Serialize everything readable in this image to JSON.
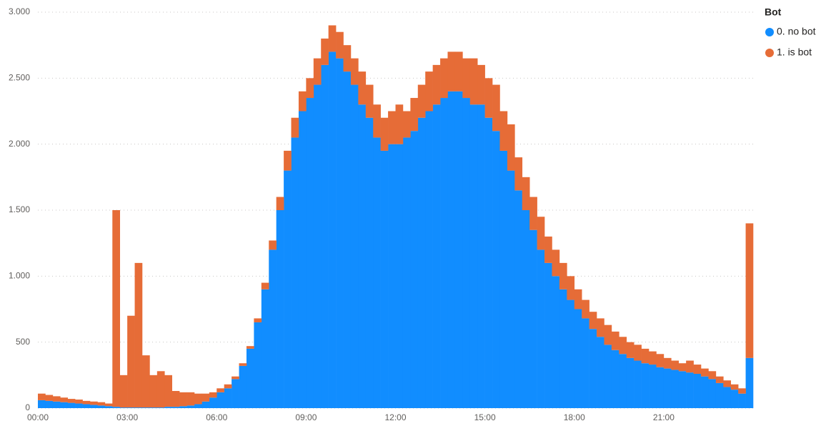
{
  "chart_data": {
    "type": "stacked-bar",
    "legend_title": "Bot",
    "x": [
      0,
      0.25,
      0.5,
      0.75,
      1,
      1.25,
      1.5,
      1.75,
      2,
      2.25,
      2.5,
      2.75,
      3,
      3.25,
      3.5,
      3.75,
      4,
      4.25,
      4.5,
      4.75,
      5,
      5.25,
      5.5,
      5.75,
      6,
      6.25,
      6.5,
      6.75,
      7,
      7.25,
      7.5,
      7.75,
      8,
      8.25,
      8.5,
      8.75,
      9,
      9.25,
      9.5,
      9.75,
      10,
      10.25,
      10.5,
      10.75,
      11,
      11.25,
      11.5,
      11.75,
      12,
      12.25,
      12.5,
      12.75,
      13,
      13.25,
      13.5,
      13.75,
      14,
      14.25,
      14.5,
      14.75,
      15,
      15.25,
      15.5,
      15.75,
      16,
      16.25,
      16.5,
      16.75,
      17,
      17.25,
      17.5,
      17.75,
      18,
      18.25,
      18.5,
      18.75,
      19,
      19.25,
      19.5,
      19.75,
      20,
      20.25,
      20.5,
      20.75,
      21,
      21.25,
      21.5,
      21.75,
      22,
      22.25,
      22.5,
      22.75,
      23,
      23.25,
      23.5,
      23.75
    ],
    "series": [
      {
        "name": "0. no bot",
        "color": "#118DFF",
        "values": [
          60,
          55,
          50,
          45,
          40,
          35,
          30,
          25,
          20,
          15,
          10,
          5,
          5,
          5,
          5,
          5,
          5,
          10,
          10,
          15,
          20,
          30,
          50,
          80,
          120,
          150,
          220,
          320,
          450,
          650,
          900,
          1200,
          1500,
          1800,
          2050,
          2250,
          2350,
          2450,
          2600,
          2700,
          2650,
          2550,
          2450,
          2300,
          2200,
          2050,
          1950,
          2000,
          2000,
          2050,
          2100,
          2200,
          2250,
          2300,
          2350,
          2400,
          2400,
          2350,
          2300,
          2300,
          2200,
          2100,
          1950,
          1800,
          1650,
          1500,
          1350,
          1200,
          1100,
          1000,
          900,
          820,
          750,
          680,
          600,
          540,
          480,
          440,
          410,
          380,
          360,
          340,
          330,
          310,
          300,
          290,
          280,
          270,
          260,
          240,
          220,
          190,
          160,
          140,
          110,
          380
        ]
      },
      {
        "name": "1. is bot",
        "color": "#E66C37",
        "values": [
          50,
          45,
          40,
          35,
          30,
          30,
          25,
          25,
          25,
          20,
          1490,
          245,
          695,
          1095,
          395,
          245,
          275,
          240,
          120,
          105,
          100,
          80,
          60,
          40,
          30,
          30,
          20,
          20,
          20,
          30,
          50,
          70,
          100,
          150,
          150,
          150,
          150,
          200,
          200,
          200,
          200,
          200,
          200,
          250,
          250,
          250,
          250,
          250,
          300,
          200,
          250,
          250,
          300,
          300,
          300,
          300,
          300,
          300,
          350,
          300,
          300,
          350,
          300,
          350,
          250,
          250,
          250,
          250,
          200,
          200,
          200,
          180,
          150,
          140,
          130,
          140,
          150,
          140,
          130,
          120,
          120,
          110,
          100,
          100,
          80,
          70,
          60,
          90,
          70,
          60,
          60,
          50,
          50,
          40,
          40,
          1020
        ]
      }
    ],
    "xlim": [
      0,
      24
    ],
    "xticks": [
      {
        "value": 0,
        "label": "00:00"
      },
      {
        "value": 3,
        "label": "03:00"
      },
      {
        "value": 6,
        "label": "06:00"
      },
      {
        "value": 9,
        "label": "09:00"
      },
      {
        "value": 12,
        "label": "12:00"
      },
      {
        "value": 15,
        "label": "15:00"
      },
      {
        "value": 18,
        "label": "18:00"
      },
      {
        "value": 21,
        "label": "21:00"
      }
    ],
    "ylim": [
      0,
      3000
    ],
    "yticks": [
      0,
      500,
      {
        "value": 1000,
        "label": "1.000"
      },
      {
        "value": 1500,
        "label": "1.500"
      },
      {
        "value": 2000,
        "label": "2.000"
      },
      {
        "value": 2500,
        "label": "2.500"
      },
      {
        "value": 3000,
        "label": "3.000"
      }
    ],
    "grid": true,
    "legend": "right"
  }
}
